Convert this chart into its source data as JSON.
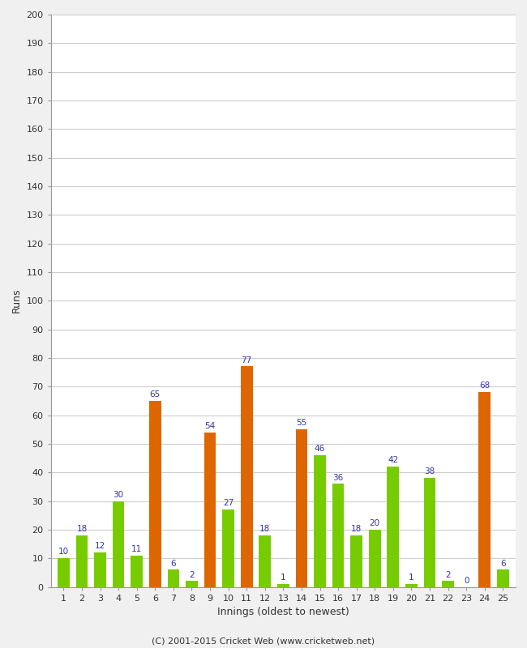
{
  "innings": [
    1,
    2,
    3,
    4,
    5,
    6,
    7,
    8,
    9,
    10,
    11,
    12,
    13,
    14,
    15,
    16,
    17,
    18,
    19,
    20,
    21,
    22,
    23,
    24,
    25
  ],
  "values": [
    10,
    18,
    12,
    30,
    11,
    65,
    6,
    2,
    54,
    27,
    77,
    18,
    1,
    55,
    46,
    36,
    18,
    20,
    42,
    1,
    38,
    2,
    0,
    68,
    6
  ],
  "colors": [
    "#77cc00",
    "#77cc00",
    "#77cc00",
    "#77cc00",
    "#77cc00",
    "#dd6600",
    "#77cc00",
    "#77cc00",
    "#dd6600",
    "#77cc00",
    "#dd6600",
    "#77cc00",
    "#77cc00",
    "#dd6600",
    "#77cc00",
    "#77cc00",
    "#77cc00",
    "#77cc00",
    "#77cc00",
    "#77cc00",
    "#77cc00",
    "#77cc00",
    "#77cc00",
    "#dd6600",
    "#77cc00"
  ],
  "xlabel": "Innings (oldest to newest)",
  "ylabel": "Runs",
  "ylim": [
    0,
    200
  ],
  "yticks": [
    0,
    10,
    20,
    30,
    40,
    50,
    60,
    70,
    80,
    90,
    100,
    110,
    120,
    130,
    140,
    150,
    160,
    170,
    180,
    190,
    200
  ],
  "figure_bg": "#f0f0f0",
  "plot_bg": "#ffffff",
  "grid_color": "#cccccc",
  "label_color": "#3333aa",
  "tick_color": "#333333",
  "footer": "(C) 2001-2015 Cricket Web (www.cricketweb.net)"
}
